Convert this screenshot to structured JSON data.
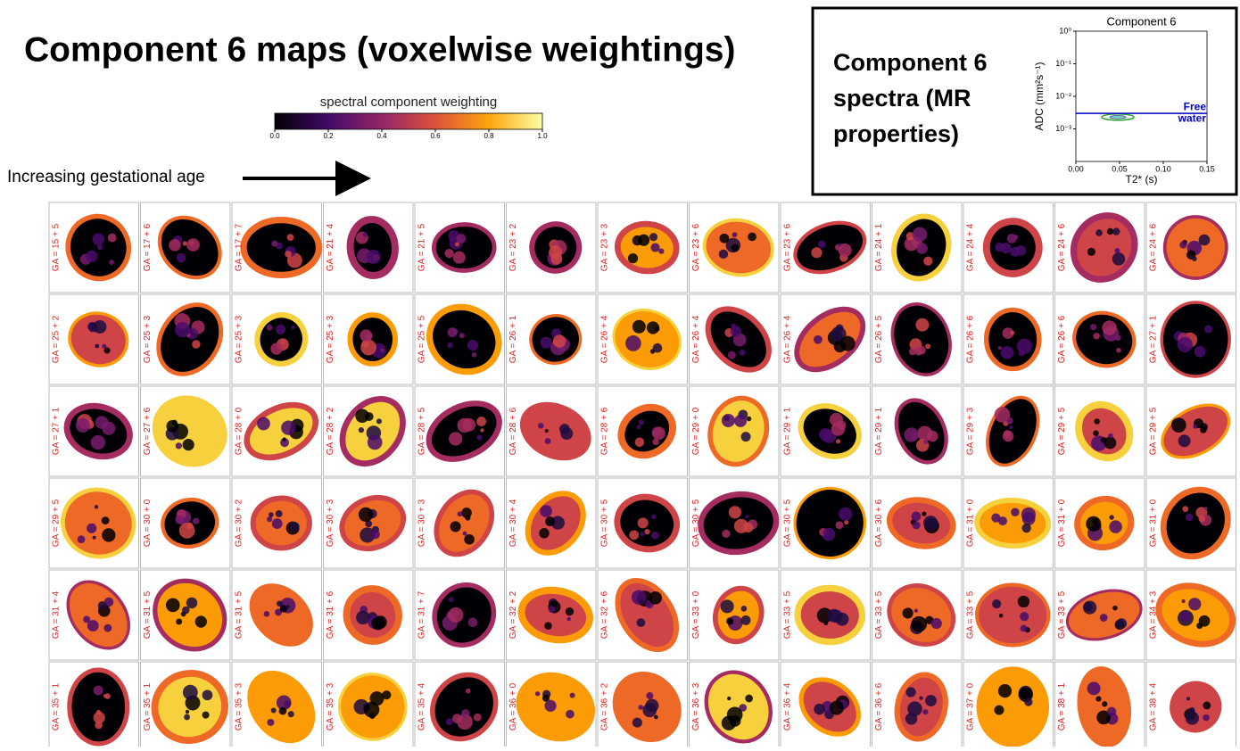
{
  "title": "Component 6 maps (voxelwise weightings)",
  "colorbar": {
    "label": "spectral component weighting",
    "lim": [
      0,
      1
    ],
    "ticks": [
      {
        "value": 0,
        "label": "0.0"
      },
      {
        "value": 0.2,
        "label": "0.2"
      },
      {
        "value": 0.4,
        "label": "0.4"
      },
      {
        "value": 0.6,
        "label": "0.6"
      },
      {
        "value": 0.8,
        "label": "0.8"
      },
      {
        "value": 1,
        "label": "1.0"
      }
    ]
  },
  "arrow_label": "Increasing gestational age",
  "spectra_title": [
    "Component 6",
    "spectra (MR",
    "properties)"
  ],
  "chart_data": {
    "type": "contour",
    "title": "Component 6",
    "xlabel": "T2* (s)",
    "ylabel": "ADC (mm²s⁻¹)",
    "xlim": [
      0,
      0.15
    ],
    "xticks": [
      {
        "value": 0,
        "label": "0.00"
      },
      {
        "value": 0.05,
        "label": "0.05"
      },
      {
        "value": 0.1,
        "label": "0.10"
      },
      {
        "value": 0.15,
        "label": "0.15"
      }
    ],
    "ylim": [
      0.0001,
      1
    ],
    "log_y": true,
    "yticks": [
      {
        "value": 0.001,
        "label": "10⁻³"
      },
      {
        "value": 0.01,
        "label": "10⁻²"
      },
      {
        "value": 0.1,
        "label": "10⁻¹"
      },
      {
        "value": 1,
        "label": "10⁰"
      }
    ],
    "peak": {
      "x": 0.048,
      "y": 0.0023,
      "color": "#2ca02c"
    },
    "hline": {
      "value": 0.003,
      "color": "#0000cc",
      "label": [
        "Free",
        "water"
      ]
    }
  },
  "panels": [
    "GA = 15 + 5",
    "GA = 17 + 6",
    "GA = 17 + 7",
    "GA = 21 + 4",
    "GA = 21 + 5",
    "GA = 23 + 2",
    "GA = 23 + 3",
    "GA = 23 + 6",
    "GA = 23 + 6",
    "GA = 24 + 1",
    "GA = 24 + 4",
    "GA = 24 + 6",
    "GA = 24 + 6",
    "GA = 25 + 2",
    "GA = 25 + 3",
    "GA = 25 + 3",
    "GA = 25 + 3",
    "GA = 25 + 5",
    "GA = 26 + 1",
    "GA = 26 + 4",
    "GA = 26 + 4",
    "GA = 26 + 4",
    "GA = 26 + 5",
    "GA = 26 + 6",
    "GA = 26 + 6",
    "GA = 27 + 1",
    "GA = 27 + 1",
    "GA = 27 + 6",
    "GA = 28 + 0",
    "GA = 28 + 2",
    "GA = 28 + 5",
    "GA = 28 + 6",
    "GA = 28 + 6",
    "GA = 29 + 0",
    "GA = 29 + 1",
    "GA = 29 + 1",
    "GA = 29 + 3",
    "GA = 29 + 5",
    "GA = 29 + 5",
    "GA = 29 + 5",
    "GA = 30 + 0",
    "GA = 30 + 2",
    "GA = 30 + 3",
    "GA = 30 + 3",
    "GA = 30 + 4",
    "GA = 30 + 5",
    "GA = 30 + 5",
    "GA = 30 + 5",
    "GA = 30 + 6",
    "GA = 31 + 0",
    "GA = 31 + 0",
    "GA = 31 + 0",
    "GA = 31 + 4",
    "GA = 31 + 5",
    "GA = 31 + 5",
    "GA = 31 + 6",
    "GA = 31 + 7",
    "GA = 32 + 2",
    "GA = 32 + 6",
    "GA = 33 + 0",
    "GA = 33 + 5",
    "GA = 33 + 5",
    "GA = 33 + 5",
    "GA = 33 + 5",
    "GA = 34 + 3",
    "GA = 35 + 1",
    "GA = 35 + 1",
    "GA = 35 + 3",
    "GA = 35 + 3",
    "GA = 35 + 4",
    "GA = 36 + 0",
    "GA = 36 + 2",
    "GA = 36 + 3",
    "GA = 36 + 4",
    "GA = 36 + 6",
    "GA = 37 + 0",
    "GA = 38 + 1",
    "GA = 38 + 4"
  ]
}
